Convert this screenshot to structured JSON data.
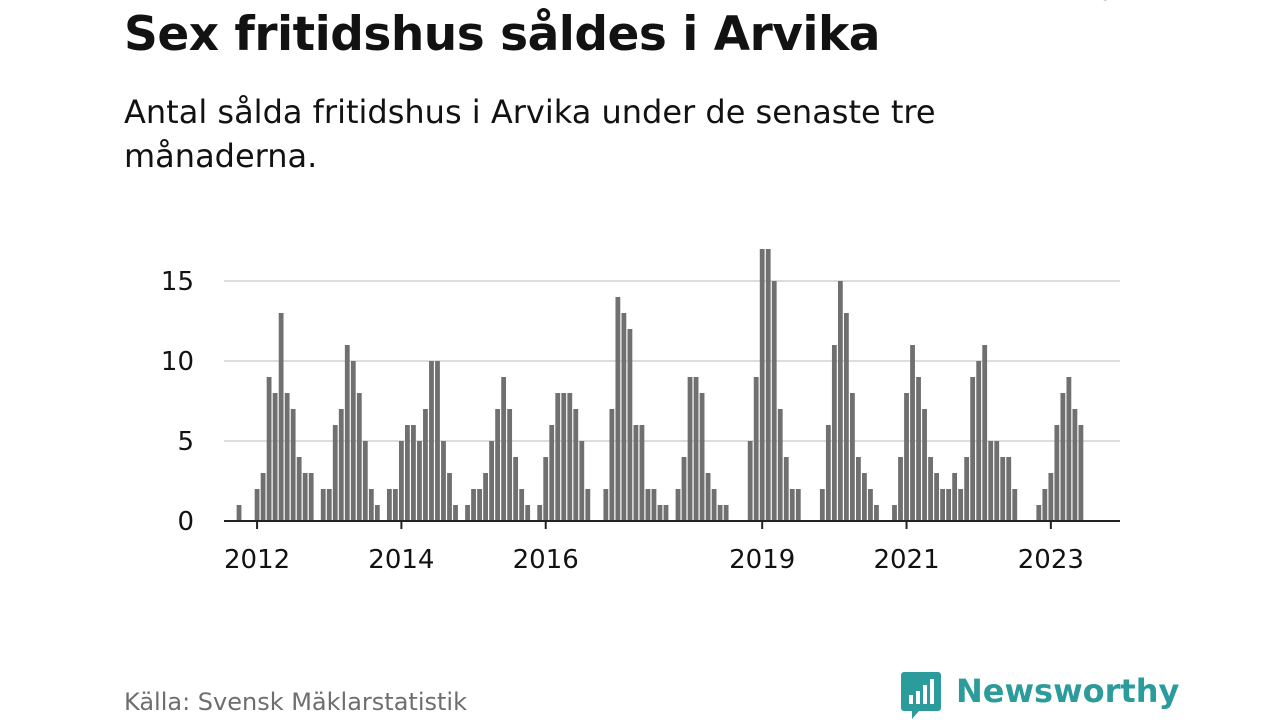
{
  "header": {
    "title": "Sex fritidshus såldes i Arvika",
    "subtitle": "Antal sålda fritidshus i Arvika under de senaste tre månaderna."
  },
  "footer": {
    "source": "Källa: Svensk Mäklarstatistik",
    "brand": "Newsworthy",
    "brand_icon": "bar-chart-speech-bubble-icon"
  },
  "colors": {
    "bar": "#707070",
    "highlight": "#2b9c9b",
    "grid": "#dddddd",
    "axis": "#222222",
    "text": "#121212"
  },
  "chart_data": {
    "type": "bar",
    "title": "Sex fritidshus såldes i Arvika",
    "subtitle": "Antal sålda fritidshus i Arvika under de senaste tre månaderna.",
    "xlabel": "",
    "ylabel": "",
    "ylim": [
      0,
      17
    ],
    "yticks": [
      0,
      5,
      10,
      15
    ],
    "grid": true,
    "x_start": "2011-08",
    "x_end": "2023-12",
    "x_ticks": [
      "2012",
      "2014",
      "2016",
      "2019",
      "2021",
      "2023"
    ],
    "x_tick_dates": [
      "2012-01",
      "2014-01",
      "2016-01",
      "2019-01",
      "2021-01",
      "2023-01"
    ],
    "series": [
      {
        "values": [
          0,
          0,
          1,
          0,
          0,
          2,
          3,
          9,
          8,
          13,
          8,
          7,
          4,
          3,
          3,
          0,
          2,
          2,
          6,
          7,
          11,
          10,
          8,
          5,
          2,
          1,
          0,
          2,
          2,
          5,
          6,
          6,
          5,
          7,
          10,
          10,
          5,
          3,
          1,
          0,
          1,
          2,
          2,
          3,
          5,
          7,
          9,
          7,
          4,
          2,
          1,
          0,
          1,
          4,
          6,
          8,
          8,
          8,
          7,
          5,
          2,
          0,
          0,
          2,
          7,
          14,
          13,
          12,
          6,
          6,
          2,
          2,
          1,
          1,
          0,
          2,
          4,
          9,
          9,
          8,
          3,
          2,
          1,
          1,
          0,
          0,
          0,
          5,
          9,
          17,
          17,
          15,
          7,
          4,
          2,
          2,
          0,
          0,
          0,
          2,
          6,
          11,
          15,
          13,
          8,
          4,
          3,
          2,
          1,
          0,
          0,
          1,
          4,
          8,
          11,
          9,
          7,
          4,
          3,
          2,
          2,
          3,
          2,
          4,
          9,
          10,
          11,
          5,
          5,
          4,
          4,
          2,
          0,
          0,
          0,
          1,
          2,
          3,
          6,
          8,
          9,
          7,
          6
        ]
      }
    ],
    "highlight": {
      "date": "2023-10",
      "value": 6,
      "label": "6"
    }
  }
}
